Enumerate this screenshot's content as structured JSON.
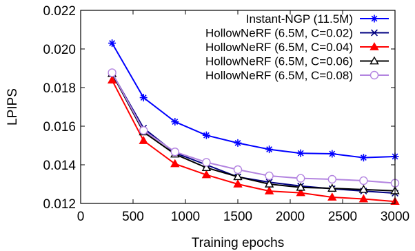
{
  "chart_data": {
    "type": "line",
    "title": "",
    "xlabel": "Training epochs",
    "ylabel": "LPIPS",
    "xlim": [
      0,
      3000
    ],
    "ylim": [
      0.012,
      0.022
    ],
    "xticks": [
      0,
      500,
      1000,
      1500,
      2000,
      2500,
      3000
    ],
    "yticks": [
      0.012,
      0.014,
      0.016,
      0.018,
      0.02,
      0.022
    ],
    "xtick_labels": [
      "0",
      "500",
      "1000",
      "1500",
      "2000",
      "2500",
      "3000"
    ],
    "ytick_labels": [
      "0.012",
      "0.014",
      "0.016",
      "0.018",
      "0.020",
      "0.022"
    ],
    "grid": false,
    "legend_position": "top-right",
    "x": [
      300,
      600,
      900,
      1200,
      1500,
      1800,
      2100,
      2400,
      2700,
      3000
    ],
    "series": [
      {
        "name": "Instant-NGP (11.5M)",
        "color": "#0000ff",
        "marker": "asterisk",
        "values": [
          0.0203,
          0.01748,
          0.01623,
          0.01553,
          0.01513,
          0.0148,
          0.0146,
          0.01457,
          0.01437,
          0.01443
        ]
      },
      {
        "name": "HollowNeRF (6.5M, C=0.02)",
        "color": "#000080",
        "marker": "x",
        "values": [
          0.01875,
          0.0159,
          0.01462,
          0.014,
          0.01337,
          0.0131,
          0.0129,
          0.01276,
          0.01264,
          0.01253
        ]
      },
      {
        "name": "HollowNeRF (6.5M, C=0.04)",
        "color": "#ff0000",
        "marker": "filled-triangle",
        "values": [
          0.01838,
          0.01525,
          0.01405,
          0.01348,
          0.013,
          0.01264,
          0.01255,
          0.01232,
          0.01223,
          0.0121
        ]
      },
      {
        "name": "HollowNeRF (6.5M, C=0.06)",
        "color": "#000000",
        "marker": "open-triangle",
        "values": [
          0.01872,
          0.0157,
          0.01455,
          0.01385,
          0.01338,
          0.013,
          0.01283,
          0.01278,
          0.01272,
          0.01265
        ]
      },
      {
        "name": "HollowNeRF (6.5M, C=0.08)",
        "color": "#b384e0",
        "marker": "open-circle",
        "values": [
          0.01877,
          0.01578,
          0.01467,
          0.01413,
          0.01375,
          0.01343,
          0.0133,
          0.01325,
          0.01318,
          0.01305
        ]
      }
    ]
  }
}
